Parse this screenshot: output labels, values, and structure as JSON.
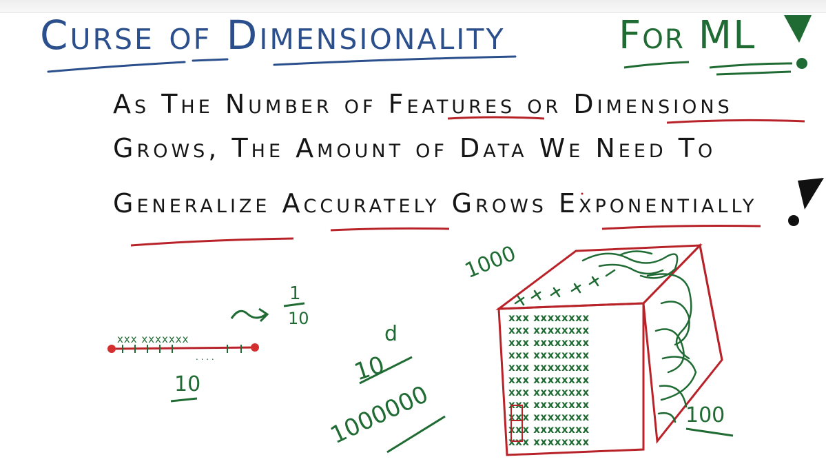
{
  "title": "Curse of Dimensionality",
  "title_suffix": "For ML",
  "statement": {
    "line1": "As The Number of Features or Dimensions",
    "line2": "Grows, The Amount of Data We Need To",
    "line3": "Generalize Accurately Grows Exponentially"
  },
  "diagram": {
    "one_d_count": "10",
    "fraction_numerator": "1",
    "fraction_denominator": "10",
    "base": "10",
    "exponent": "d",
    "million": "1000000",
    "cube_top_count": "1000",
    "cube_face_count": "100"
  },
  "colors": {
    "title_blue": "#2b4f8c",
    "marker_green": "#1f6b33",
    "marker_red": "#b8232a",
    "ink_black": "#151515"
  }
}
